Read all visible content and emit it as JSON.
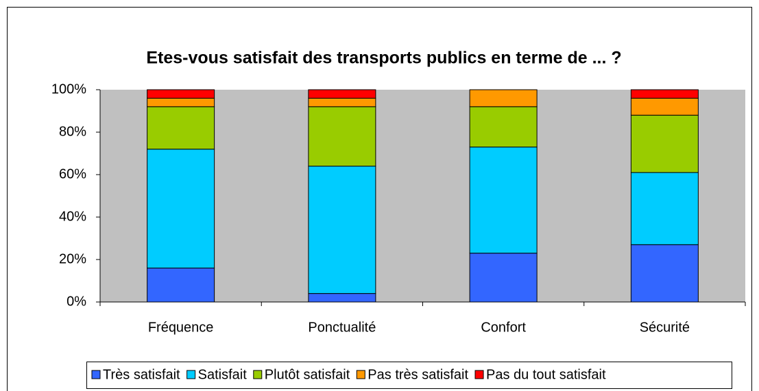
{
  "chart_data": {
    "type": "stacked_bar",
    "title": "Etes-vous satisfait des transports publics en terme de ... ?",
    "categories": [
      "Fréquence",
      "Ponctualité",
      "Confort",
      "Sécurité"
    ],
    "series": [
      {
        "name": "Très satisfait",
        "color": "#3366ff",
        "values": [
          16,
          4,
          23,
          27
        ]
      },
      {
        "name": "Satisfait",
        "color": "#00ccff",
        "values": [
          56,
          60,
          50,
          34
        ]
      },
      {
        "name": "Plutôt satisfait",
        "color": "#99cc00",
        "values": [
          20,
          28,
          19,
          27
        ]
      },
      {
        "name": "Pas très satisfait",
        "color": "#ff9900",
        "values": [
          4,
          4,
          8,
          8
        ]
      },
      {
        "name": "Pas du tout satisfait",
        "color": "#ff0000",
        "values": [
          4,
          4,
          0,
          4
        ]
      }
    ],
    "ylim": [
      0,
      100
    ],
    "yticks": [
      {
        "value": 0,
        "label": "0%"
      },
      {
        "value": 20,
        "label": "20%"
      },
      {
        "value": 40,
        "label": "40%"
      },
      {
        "value": 60,
        "label": "60%"
      },
      {
        "value": 80,
        "label": "80%"
      },
      {
        "value": 100,
        "label": "100%"
      }
    ],
    "legend": "bottom"
  }
}
